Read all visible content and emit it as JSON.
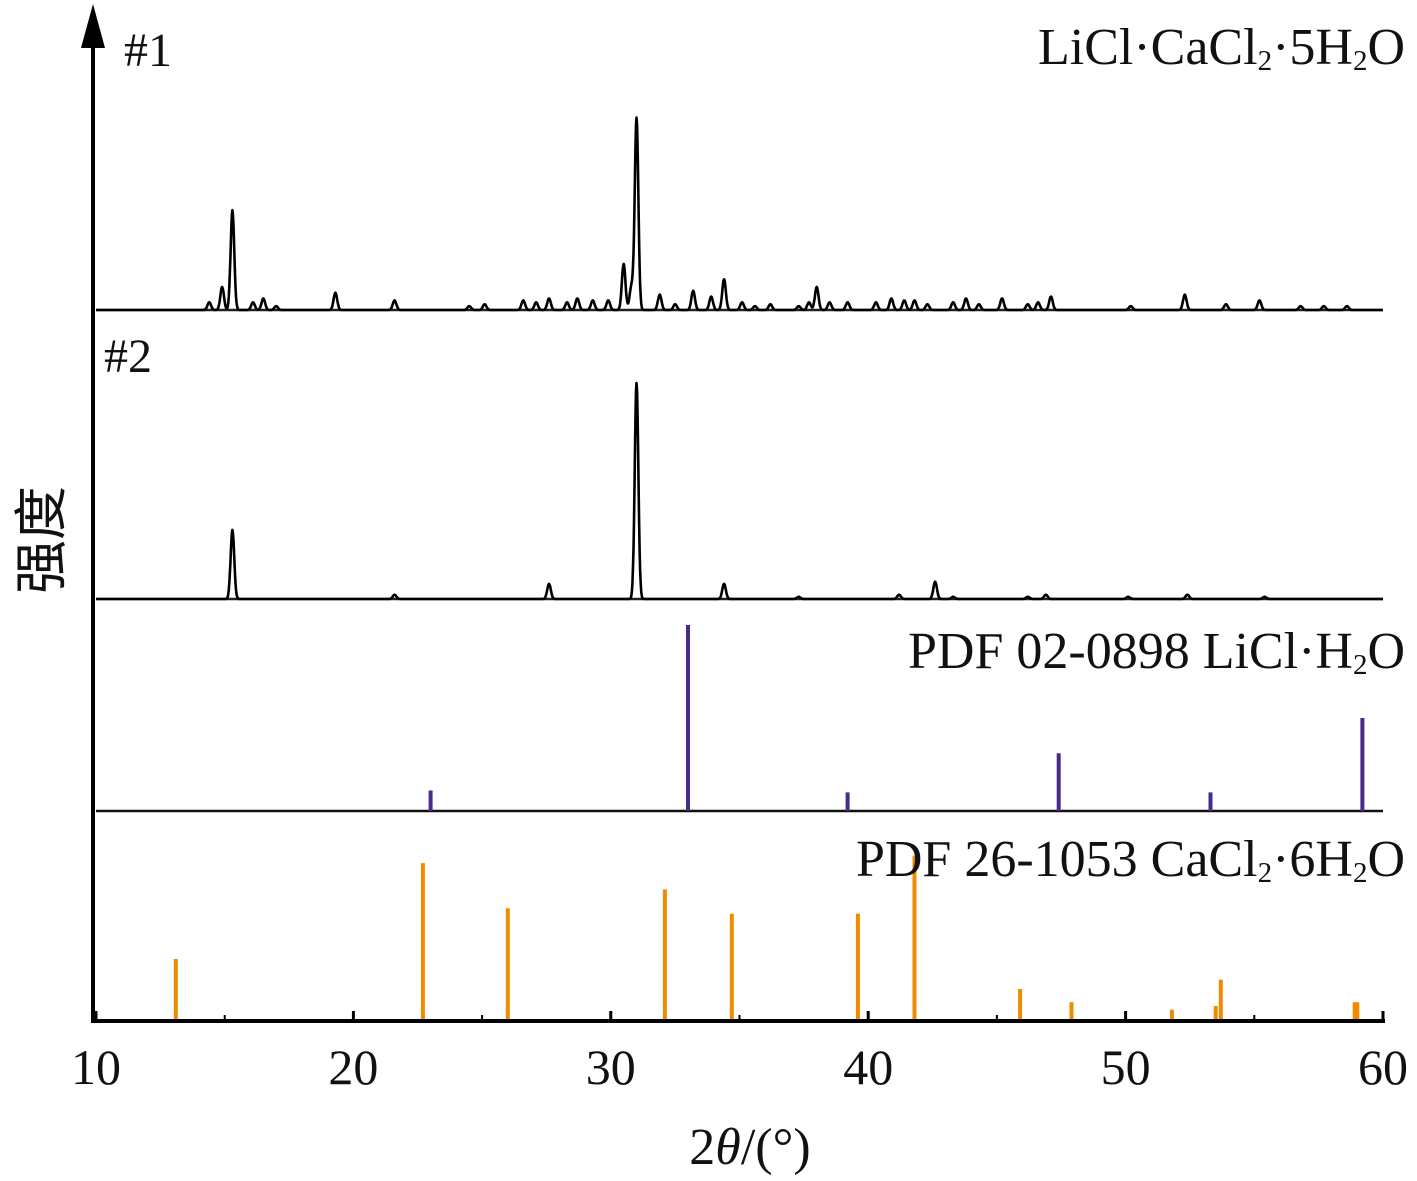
{
  "chart_data": {
    "type": "line",
    "xlabel": "2θ/(°)",
    "ylabel": "强度",
    "xlim": [
      10,
      60
    ],
    "xticks": [
      "10",
      "20",
      "30",
      "40",
      "50",
      "60"
    ],
    "panels": [
      {
        "id": "p1",
        "tag": "#1",
        "label": "LiCl·CaCl₂·5H₂O",
        "kind": "pattern",
        "color": "#000000",
        "peaks": [
          [
            14.4,
            0.04
          ],
          [
            14.9,
            0.12
          ],
          [
            15.3,
            0.52
          ],
          [
            16.1,
            0.04
          ],
          [
            16.5,
            0.06
          ],
          [
            17.0,
            0.02
          ],
          [
            19.3,
            0.09
          ],
          [
            21.6,
            0.05
          ],
          [
            24.5,
            0.02
          ],
          [
            25.1,
            0.03
          ],
          [
            26.6,
            0.05
          ],
          [
            27.1,
            0.04
          ],
          [
            27.6,
            0.06
          ],
          [
            28.3,
            0.04
          ],
          [
            28.7,
            0.06
          ],
          [
            29.3,
            0.05
          ],
          [
            29.9,
            0.05
          ],
          [
            30.5,
            0.24
          ],
          [
            30.8,
            0.12
          ],
          [
            31.0,
            1.0
          ],
          [
            31.9,
            0.08
          ],
          [
            32.5,
            0.03
          ],
          [
            33.2,
            0.1
          ],
          [
            33.9,
            0.07
          ],
          [
            34.4,
            0.16
          ],
          [
            35.1,
            0.04
          ],
          [
            35.6,
            0.02
          ],
          [
            36.2,
            0.03
          ],
          [
            37.3,
            0.02
          ],
          [
            37.7,
            0.04
          ],
          [
            38.0,
            0.12
          ],
          [
            38.5,
            0.04
          ],
          [
            39.2,
            0.04
          ],
          [
            40.3,
            0.04
          ],
          [
            40.9,
            0.06
          ],
          [
            41.4,
            0.05
          ],
          [
            41.8,
            0.05
          ],
          [
            42.3,
            0.03
          ],
          [
            43.3,
            0.04
          ],
          [
            43.8,
            0.06
          ],
          [
            44.3,
            0.03
          ],
          [
            45.2,
            0.06
          ],
          [
            46.2,
            0.03
          ],
          [
            46.6,
            0.04
          ],
          [
            47.1,
            0.07
          ],
          [
            50.2,
            0.02
          ],
          [
            52.3,
            0.08
          ],
          [
            53.9,
            0.03
          ],
          [
            55.2,
            0.05
          ],
          [
            56.8,
            0.02
          ],
          [
            57.7,
            0.02
          ],
          [
            58.6,
            0.02
          ]
        ]
      },
      {
        "id": "p2",
        "tag": "#2",
        "label": "",
        "kind": "pattern",
        "color": "#000000",
        "peaks": [
          [
            15.3,
            0.32
          ],
          [
            21.6,
            0.02
          ],
          [
            27.6,
            0.07
          ],
          [
            31.0,
            1.0
          ],
          [
            34.4,
            0.07
          ],
          [
            37.3,
            0.01
          ],
          [
            41.2,
            0.02
          ],
          [
            42.6,
            0.08
          ],
          [
            43.3,
            0.01
          ],
          [
            46.2,
            0.01
          ],
          [
            46.9,
            0.02
          ],
          [
            50.1,
            0.01
          ],
          [
            52.4,
            0.02
          ],
          [
            55.4,
            0.01
          ]
        ]
      },
      {
        "id": "p3",
        "tag": "",
        "label": "PDF 02-0898 LiCl·H₂O",
        "kind": "sticks",
        "color": "#4a2a8a",
        "sticks": [
          [
            23.0,
            0.11
          ],
          [
            33.0,
            1.0
          ],
          [
            39.2,
            0.1
          ],
          [
            47.4,
            0.31
          ],
          [
            53.3,
            0.1
          ],
          [
            59.2,
            0.5
          ]
        ]
      },
      {
        "id": "p4",
        "tag": "",
        "label": "PDF 26-1053 CaCl₂·6H₂O",
        "kind": "sticks",
        "color": "#f08a00",
        "sticks": [
          [
            13.1,
            0.33
          ],
          [
            22.7,
            0.84
          ],
          [
            26.0,
            0.6
          ],
          [
            32.1,
            0.7
          ],
          [
            34.7,
            0.57
          ],
          [
            39.6,
            0.57
          ],
          [
            41.8,
            0.88
          ],
          [
            45.9,
            0.17
          ],
          [
            47.9,
            0.1
          ],
          [
            51.8,
            0.06
          ],
          [
            53.5,
            0.08
          ],
          [
            53.7,
            0.22
          ],
          [
            58.9,
            0.1
          ],
          [
            59.0,
            0.1
          ]
        ]
      }
    ]
  }
}
